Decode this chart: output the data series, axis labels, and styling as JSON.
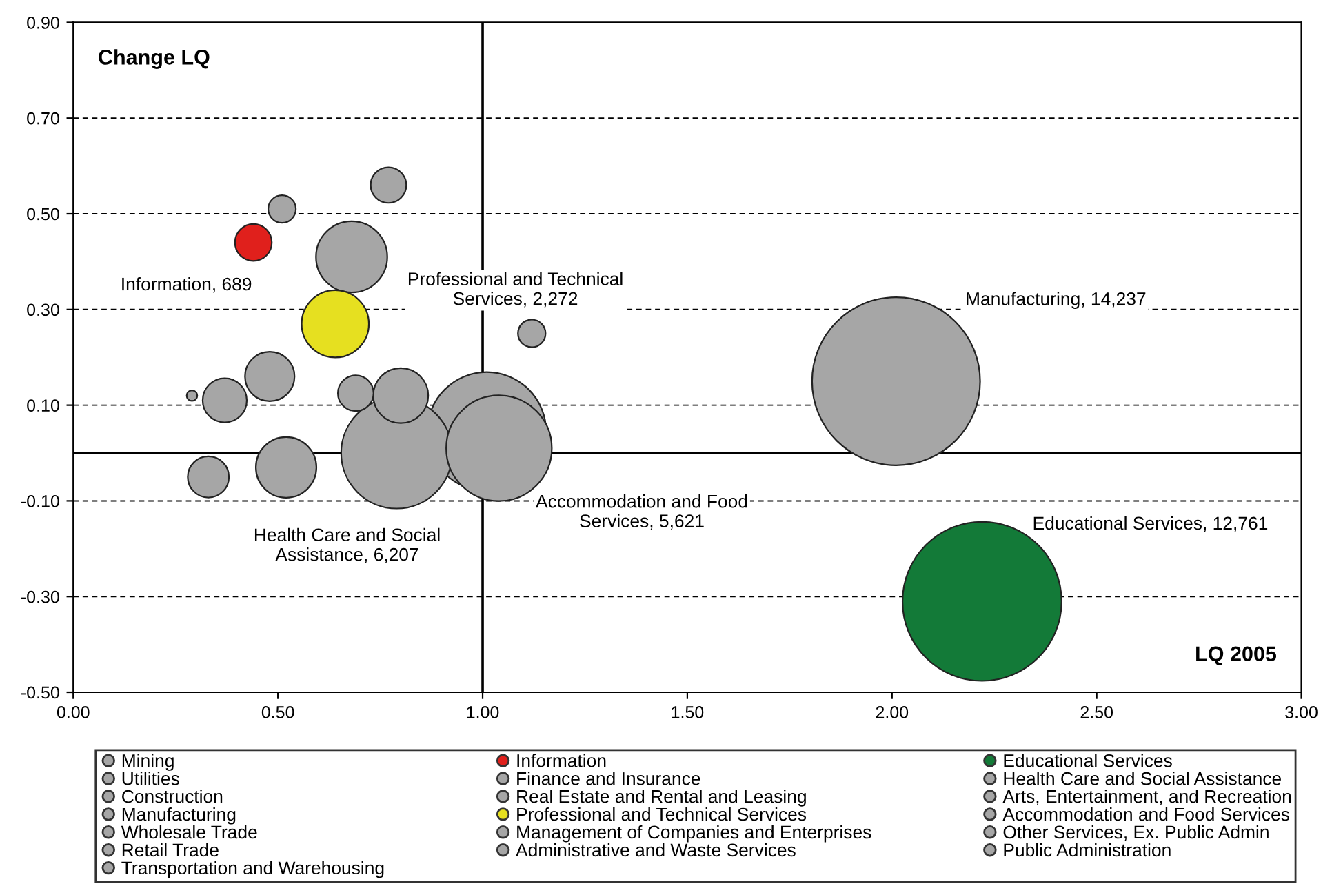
{
  "chart_data": {
    "type": "bubble",
    "xlabel": "LQ 2005",
    "ylabel": "Change LQ",
    "xlim": [
      0,
      3
    ],
    "xticks": [
      {
        "value": 0,
        "label": "0.00"
      },
      {
        "value": 0.5,
        "label": "0.50"
      },
      {
        "value": 1,
        "label": "1.00"
      },
      {
        "value": 1.5,
        "label": "1.50"
      },
      {
        "value": 2,
        "label": "2.00"
      },
      {
        "value": 2.5,
        "label": "2.50"
      },
      {
        "value": 3,
        "label": "3.00"
      }
    ],
    "ylim": [
      -0.5,
      0.9
    ],
    "yticks": [
      {
        "value": -0.5,
        "label": "-0.50"
      },
      {
        "value": -0.3,
        "label": "-0.30"
      },
      {
        "value": -0.1,
        "label": "-0.10"
      },
      {
        "value": 0.1,
        "label": "0.10"
      },
      {
        "value": 0.3,
        "label": "0.30"
      },
      {
        "value": 0.5,
        "label": "0.50"
      },
      {
        "value": 0.7,
        "label": "0.70"
      },
      {
        "value": 0.9,
        "label": "0.90"
      }
    ],
    "grid": "y",
    "legend": "bottom",
    "ref_lines": [
      {
        "axis": "x",
        "value": 1,
        "color": "#000000",
        "line_style": "solid"
      },
      {
        "axis": "y",
        "value": 0,
        "color": "#000000",
        "line_style": "solid"
      }
    ],
    "series": [
      {
        "name": "Mining",
        "color": "#a6a6a6",
        "x": [
          0.29
        ],
        "values": [
          0.12
        ],
        "sizes": [
          0.004
        ]
      },
      {
        "name": "Utilities",
        "color": "#a6a6a6",
        "x": [
          0.51
        ],
        "values": [
          0.51
        ],
        "sizes": [
          0.027
        ]
      },
      {
        "name": "Construction",
        "color": "#a6a6a6",
        "x": [
          0.52
        ],
        "values": [
          -0.03
        ],
        "sizes": [
          0.13
        ]
      },
      {
        "name": "Manufacturing",
        "color": "#a6a6a6",
        "x": [
          2.01
        ],
        "values": [
          0.15
        ],
        "sizes": [
          1
        ]
      },
      {
        "name": "Wholesale Trade",
        "color": "#a6a6a6",
        "x": [
          0.68
        ],
        "values": [
          0.41
        ],
        "sizes": [
          0.18
        ]
      },
      {
        "name": "Retail Trade",
        "color": "#a6a6a6",
        "x": [
          1.01
        ],
        "values": [
          0.045
        ],
        "sizes": [
          0.5
        ]
      },
      {
        "name": "Transportation and Warehousing",
        "color": "#a6a6a6",
        "x": [
          0.48
        ],
        "values": [
          0.16
        ],
        "sizes": [
          0.087
        ]
      },
      {
        "name": "Information",
        "color": "#e0201c",
        "x": [
          0.44
        ],
        "values": [
          0.44
        ],
        "sizes": [
          0.048
        ]
      },
      {
        "name": "Finance and Insurance",
        "color": "#a6a6a6",
        "x": [
          0.8
        ],
        "values": [
          0.12
        ],
        "sizes": [
          0.107
        ]
      },
      {
        "name": "Real Estate and Rental and Leasing",
        "color": "#a6a6a6",
        "x": [
          0.37
        ],
        "values": [
          0.11
        ],
        "sizes": [
          0.069
        ]
      },
      {
        "name": "Professional and Technical Services",
        "color": "#e6e020",
        "x": [
          0.64
        ],
        "values": [
          0.27
        ],
        "sizes": [
          0.16
        ]
      },
      {
        "name": "Management of Companies and Enterprises",
        "color": "#a6a6a6",
        "x": [
          0.77
        ],
        "values": [
          0.56
        ],
        "sizes": [
          0.045
        ]
      },
      {
        "name": "Administrative and Waste Services",
        "color": "#a6a6a6",
        "x": [
          0.33
        ],
        "values": [
          -0.05
        ],
        "sizes": [
          0.06
        ]
      },
      {
        "name": "Educational Services",
        "color": "#137a38",
        "x": [
          2.22
        ],
        "values": [
          -0.31
        ],
        "sizes": [
          0.896
        ]
      },
      {
        "name": "Health Care and Social Assistance",
        "color": "#a6a6a6",
        "x": [
          0.79
        ],
        "values": [
          0.0
        ],
        "sizes": [
          0.436
        ]
      },
      {
        "name": "Arts, Entertainment, and Recreation",
        "color": "#a6a6a6",
        "x": [
          0.69
        ],
        "values": [
          0.125
        ],
        "sizes": [
          0.045
        ]
      },
      {
        "name": "Accommodation and Food Services",
        "color": "#a6a6a6",
        "x": [
          1.04
        ],
        "values": [
          0.01
        ],
        "sizes": [
          0.395
        ]
      },
      {
        "name": "Other Services, Ex. Public Admin",
        "color": "#a6a6a6",
        "x": [
          1.12
        ],
        "values": [
          0.25
        ],
        "sizes": [
          0.027
        ]
      },
      {
        "name": "Public Administration",
        "color": "#a6a6a6",
        "x": [
          null
        ],
        "values": [
          null
        ],
        "sizes": [
          null
        ]
      }
    ],
    "annotations": [
      "Information, 689",
      "Professional and Technical\nServices, 2,272",
      "Manufacturing, 14,237",
      "Accommodation and Food\nServices, 5,621",
      "Health Care and Social\nAssistance, 6,207",
      "Educational Services, 12,761"
    ]
  }
}
